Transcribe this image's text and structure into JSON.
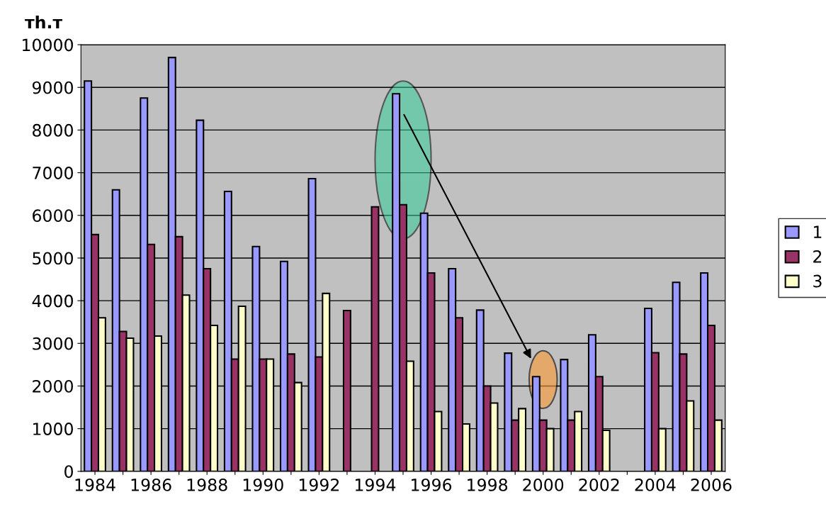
{
  "chart_data": {
    "type": "bar",
    "ylabel": "тh.т",
    "categories": [
      "1984",
      null,
      "1986",
      null,
      "1988",
      null,
      "1990",
      null,
      "1992",
      null,
      "1994",
      null,
      "1996",
      null,
      "1998",
      null,
      "2000",
      null,
      "2002",
      null,
      "2004",
      null,
      "2006"
    ],
    "series": [
      {
        "name": "1",
        "color": "#9999ff",
        "values": [
          9150,
          6600,
          8750,
          9700,
          8230,
          6560,
          5270,
          4920,
          6860,
          null,
          null,
          8850,
          6050,
          4750,
          3780,
          2770,
          2220,
          2620,
          3200,
          null,
          3820,
          4430,
          4650
        ]
      },
      {
        "name": "2",
        "color": "#993366",
        "values": [
          5550,
          3280,
          5320,
          5500,
          4750,
          2630,
          2630,
          2750,
          2680,
          3770,
          6200,
          6250,
          4650,
          3600,
          2000,
          1200,
          1200,
          1200,
          2220,
          null,
          2780,
          2750,
          3420
        ]
      },
      {
        "name": "3",
        "color": "#ffffcc",
        "values": [
          3600,
          3120,
          3170,
          4130,
          3420,
          3870,
          2630,
          2080,
          4170,
          null,
          null,
          2580,
          1400,
          1110,
          1600,
          1470,
          1000,
          1400,
          960,
          null,
          1000,
          1650,
          1200
        ]
      }
    ],
    "ylim": [
      0,
      10000
    ],
    "yticks": [
      0,
      1000,
      2000,
      3000,
      4000,
      5000,
      6000,
      7000,
      8000,
      9000,
      10000
    ],
    "grid": "y",
    "legend": "right"
  }
}
